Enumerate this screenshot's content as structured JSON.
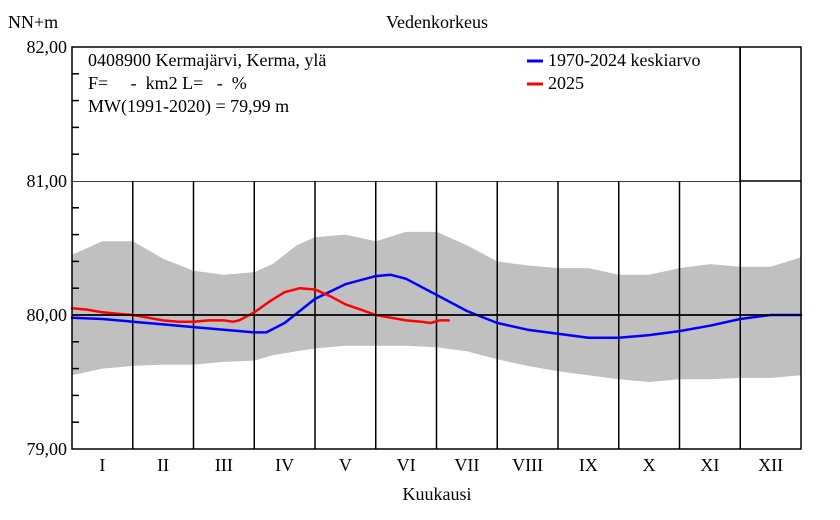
{
  "chart_data": {
    "type": "line",
    "title": "Vedenkorkeus",
    "ylabel": "NN+m",
    "xlabel": "Kuukausi",
    "ylim": [
      79.0,
      82.0
    ],
    "yticks": [
      "79,00",
      "80,00",
      "81,00",
      "82,00"
    ],
    "months": [
      "I",
      "II",
      "III",
      "IV",
      "V",
      "VI",
      "VII",
      "VIII",
      "IX",
      "X",
      "XI",
      "XII"
    ],
    "reference_level": 80.0,
    "info_lines": [
      "0408900 Kermajärvi, Kerma, ylä",
      "F=     -  km2 L=   -  %",
      "MW(1991-2020) = 79,99 m"
    ],
    "legend": [
      {
        "name": "1970-2024 keskiarvo",
        "color": "#0000ff"
      },
      {
        "name": "2025",
        "color": "#ff0000"
      }
    ],
    "band": {
      "name": "min-max range",
      "color": "#c0c0c0",
      "x": [
        0,
        0.5,
        1,
        1.5,
        2,
        2.5,
        3,
        3.3,
        3.7,
        4,
        4.5,
        5,
        5.5,
        6,
        6.5,
        7,
        7.5,
        8,
        8.5,
        9,
        9.5,
        10,
        10.5,
        11,
        11.5,
        12
      ],
      "upper": [
        80.45,
        80.55,
        80.55,
        80.42,
        80.33,
        80.3,
        80.32,
        80.38,
        80.52,
        80.58,
        80.6,
        80.55,
        80.62,
        80.62,
        80.52,
        80.4,
        80.37,
        80.35,
        80.35,
        80.3,
        80.3,
        80.35,
        80.38,
        80.36,
        80.36,
        80.43
      ],
      "lower": [
        79.55,
        79.6,
        79.62,
        79.63,
        79.63,
        79.65,
        79.66,
        79.7,
        79.73,
        79.75,
        79.77,
        79.77,
        79.77,
        79.76,
        79.73,
        79.67,
        79.62,
        79.58,
        79.55,
        79.52,
        79.5,
        79.52,
        79.52,
        79.53,
        79.53,
        79.55
      ]
    },
    "series": [
      {
        "name": "1970-2024 keskiarvo",
        "color": "#0000ff",
        "x": [
          0,
          0.5,
          1,
          1.5,
          2,
          2.5,
          3,
          3.2,
          3.5,
          4,
          4.5,
          5,
          5.25,
          5.5,
          6,
          6.5,
          7,
          7.5,
          8,
          8.5,
          9,
          9.5,
          10,
          10.5,
          11,
          11.5,
          12
        ],
        "values": [
          79.98,
          79.97,
          79.95,
          79.93,
          79.91,
          79.89,
          79.87,
          79.87,
          79.94,
          80.12,
          80.23,
          80.29,
          80.3,
          80.27,
          80.15,
          80.03,
          79.94,
          79.89,
          79.86,
          79.83,
          79.83,
          79.85,
          79.88,
          79.92,
          79.97,
          80.0,
          80.0
        ]
      },
      {
        "name": "2025",
        "color": "#ff0000",
        "x": [
          0,
          0.25,
          0.5,
          0.75,
          1,
          1.25,
          1.5,
          1.75,
          2,
          2.25,
          2.5,
          2.65,
          2.75,
          3,
          3.25,
          3.5,
          3.75,
          4,
          4.25,
          4.5,
          4.75,
          5,
          5.25,
          5.5,
          5.75,
          5.9,
          6.05,
          6.2
        ],
        "values": [
          80.05,
          80.04,
          80.02,
          80.01,
          80.0,
          79.98,
          79.96,
          79.95,
          79.95,
          79.96,
          79.96,
          79.95,
          79.96,
          80.02,
          80.1,
          80.17,
          80.2,
          80.19,
          80.14,
          80.08,
          80.04,
          80.0,
          79.98,
          79.96,
          79.95,
          79.94,
          79.96,
          79.96
        ]
      }
    ]
  }
}
